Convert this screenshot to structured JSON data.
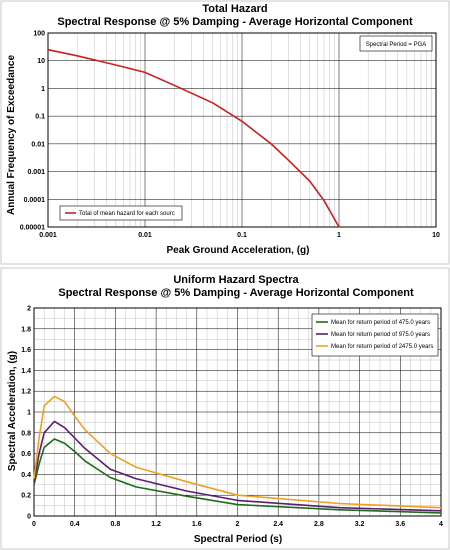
{
  "chart_data": [
    {
      "type": "line",
      "title": "Total Hazard",
      "subtitle": "Spectral Response @ 5% Damping - Average Horizontal Component",
      "xlabel": "Peak Ground Acceleration, (g)",
      "ylabel": "Annual Frequency of Exceedance",
      "xscale": "log",
      "yscale": "log",
      "xlim": [
        0.001,
        10
      ],
      "ylim": [
        1e-05,
        100
      ],
      "x_ticks": [
        "0.001",
        "0.01",
        "0.1",
        "1",
        "10"
      ],
      "y_ticks": [
        "100",
        "10",
        "1",
        "0.1",
        "0.01",
        "0.001",
        "0.0001",
        "0.00001"
      ],
      "annotation": "Spectral Period = PGA",
      "grid": true,
      "legend_position": "bottom-left",
      "series": [
        {
          "name": "Total of mean hazard for each sourc",
          "color": "#cc1f1f",
          "x": [
            0.001,
            0.002,
            0.005,
            0.01,
            0.02,
            0.05,
            0.1,
            0.2,
            0.3,
            0.5,
            0.7,
            1.0
          ],
          "y": [
            25,
            15,
            7,
            3.8,
            1.3,
            0.3,
            0.065,
            0.01,
            0.0026,
            0.00045,
            9e-05,
            1e-05
          ]
        }
      ]
    },
    {
      "type": "line",
      "title": "Uniform Hazard Spectra",
      "subtitle": "Spectral Response @ 5% Damping - Average Horizontal Component",
      "xlabel": "Spectral Period (s)",
      "ylabel": "Spectral Acceleration, (g)",
      "xlim": [
        0,
        4
      ],
      "ylim": [
        0,
        2
      ],
      "x_ticks": [
        "0",
        "0.4",
        "0.8",
        "1.2",
        "1.6",
        "2",
        "2.4",
        "2.8",
        "3.2",
        "3.6",
        "4"
      ],
      "y_ticks": [
        "0",
        "0.2",
        "0.4",
        "0.6",
        "0.8",
        "1",
        "1.2",
        "1.4",
        "1.6",
        "1.8",
        "2"
      ],
      "grid": true,
      "legend_position": "top-right",
      "series": [
        {
          "name": "Mean for return period of 475.0 years",
          "color": "#1e6b1e",
          "x": [
            0,
            0.05,
            0.1,
            0.2,
            0.3,
            0.4,
            0.5,
            0.75,
            1.0,
            1.5,
            2.0,
            3.0,
            4.0
          ],
          "y": [
            0.3,
            0.5,
            0.66,
            0.74,
            0.7,
            0.62,
            0.53,
            0.37,
            0.28,
            0.19,
            0.11,
            0.06,
            0.03
          ]
        },
        {
          "name": "Mean for return period of 975.0 years",
          "color": "#5a1e6e",
          "x": [
            0,
            0.05,
            0.1,
            0.2,
            0.3,
            0.4,
            0.5,
            0.75,
            1.0,
            1.5,
            2.0,
            3.0,
            4.0
          ],
          "y": [
            0.33,
            0.6,
            0.8,
            0.91,
            0.85,
            0.75,
            0.65,
            0.45,
            0.36,
            0.24,
            0.15,
            0.08,
            0.05
          ]
        },
        {
          "name": "Mean for return period of 2475.0 years",
          "color": "#f0a020",
          "x": [
            0,
            0.05,
            0.1,
            0.2,
            0.3,
            0.4,
            0.5,
            0.75,
            1.0,
            1.5,
            2.0,
            3.0,
            4.0
          ],
          "y": [
            0.36,
            0.75,
            1.06,
            1.15,
            1.1,
            0.96,
            0.83,
            0.6,
            0.47,
            0.33,
            0.2,
            0.12,
            0.08
          ]
        }
      ]
    }
  ]
}
